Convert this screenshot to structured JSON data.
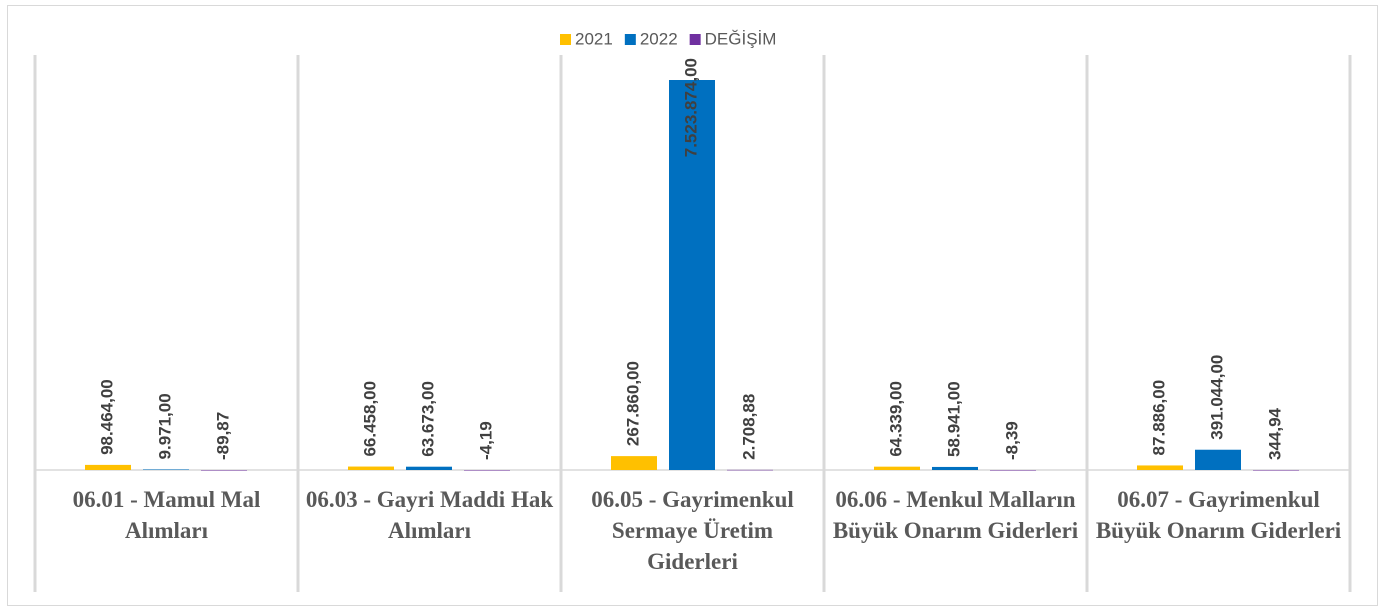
{
  "chart_data": {
    "type": "bar",
    "categories": [
      "06.01 - Mamul Mal Alımları",
      "06.03 - Gayri Maddi Hak Alımları",
      "06.05 - Gayrimenkul Sermaye Üretim Giderleri",
      "06.06 - Menkul Malların Büyük Onarım Giderleri",
      "06.07 - Gayrimenkul Büyük Onarım Giderleri"
    ],
    "series": [
      {
        "name": "2021",
        "color": "#FFC000",
        "values": [
          98464,
          66458,
          267860,
          64339,
          87886
        ],
        "value_labels": [
          "98.464,00",
          "66.458,00",
          "267.860,00",
          "64.339,00",
          "87.886,00"
        ]
      },
      {
        "name": "2022",
        "color": "#0070C0",
        "values": [
          9971,
          63673,
          7523874,
          58941,
          391044
        ],
        "value_labels": [
          "9.971,00",
          "63.673,00",
          "7.523.874,00",
          "58.941,00",
          "391.044,00"
        ]
      },
      {
        "name": "DEĞİŞİM",
        "color": "#7030A0",
        "values": [
          -89.87,
          -4.19,
          2708.88,
          -8.39,
          344.94
        ],
        "value_labels": [
          "-89,87",
          "-4,19",
          "2.708,88",
          "-8,39",
          "344,94"
        ]
      }
    ],
    "legend": "top"
  }
}
